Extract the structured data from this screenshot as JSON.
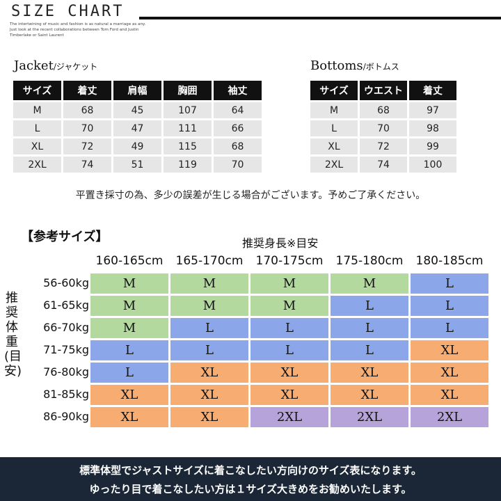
{
  "header": {
    "title": "SIZE CHART",
    "tagline": "The intertwining of music and fashion is as natural a marriage as any. Just look at the recent collaborations between Tom Ford and Justin Timberlake or Saint Laurent"
  },
  "jacket": {
    "title": "Jacket",
    "title_jp": "/ジャケット",
    "headers": [
      "サイズ",
      "着丈",
      "肩幅",
      "胸囲",
      "袖丈"
    ],
    "rows": [
      [
        "M",
        "68",
        "45",
        "107",
        "64"
      ],
      [
        "L",
        "70",
        "47",
        "111",
        "66"
      ],
      [
        "XL",
        "72",
        "49",
        "115",
        "68"
      ],
      [
        "2XL",
        "74",
        "51",
        "119",
        "70"
      ]
    ]
  },
  "bottoms": {
    "title": "Bottoms",
    "title_jp": "/ボトムス",
    "headers": [
      "サイズ",
      "ウエスト",
      "着丈"
    ],
    "rows": [
      [
        "M",
        "68",
        "97"
      ],
      [
        "L",
        "70",
        "98"
      ],
      [
        "XL",
        "72",
        "99"
      ],
      [
        "2XL",
        "74",
        "100"
      ]
    ]
  },
  "note": "平置き採寸の為、多少の誤差が生じる場合がございます。予めご了承ください。",
  "reference": {
    "title": "【参考サイズ】",
    "height_title": "推奨身長※目安",
    "weight_title": "推奨体重(目安)",
    "heights": [
      "160-165cm",
      "165-170cm",
      "170-175cm",
      "175-180cm",
      "180-185cm"
    ],
    "weights": [
      "56-60kg",
      "61-65kg",
      "66-70kg",
      "71-75kg",
      "76-80kg",
      "81-85kg",
      "86-90kg"
    ],
    "grid": [
      [
        "M",
        "M",
        "M",
        "M",
        "L"
      ],
      [
        "M",
        "M",
        "M",
        "L",
        "L"
      ],
      [
        "M",
        "L",
        "L",
        "L",
        "L"
      ],
      [
        "L",
        "L",
        "L",
        "L",
        "XL"
      ],
      [
        "L",
        "XL",
        "XL",
        "XL",
        "XL"
      ],
      [
        "XL",
        "XL",
        "XL",
        "XL",
        "XL"
      ],
      [
        "XL",
        "XL",
        "2XL",
        "2XL",
        "2XL"
      ]
    ],
    "size_colors": {
      "M": "#b3d99f",
      "L": "#8ca7e9",
      "XL": "#f7ad72",
      "2XL": "#b5a3da"
    }
  },
  "banner": {
    "line1": "標準体型でジャストサイズに着こなしたい方向けのサイズ表になります。",
    "line2": "ゆったり目で着こなしたい方は１サイズ大きめをお勧めいたします。"
  }
}
